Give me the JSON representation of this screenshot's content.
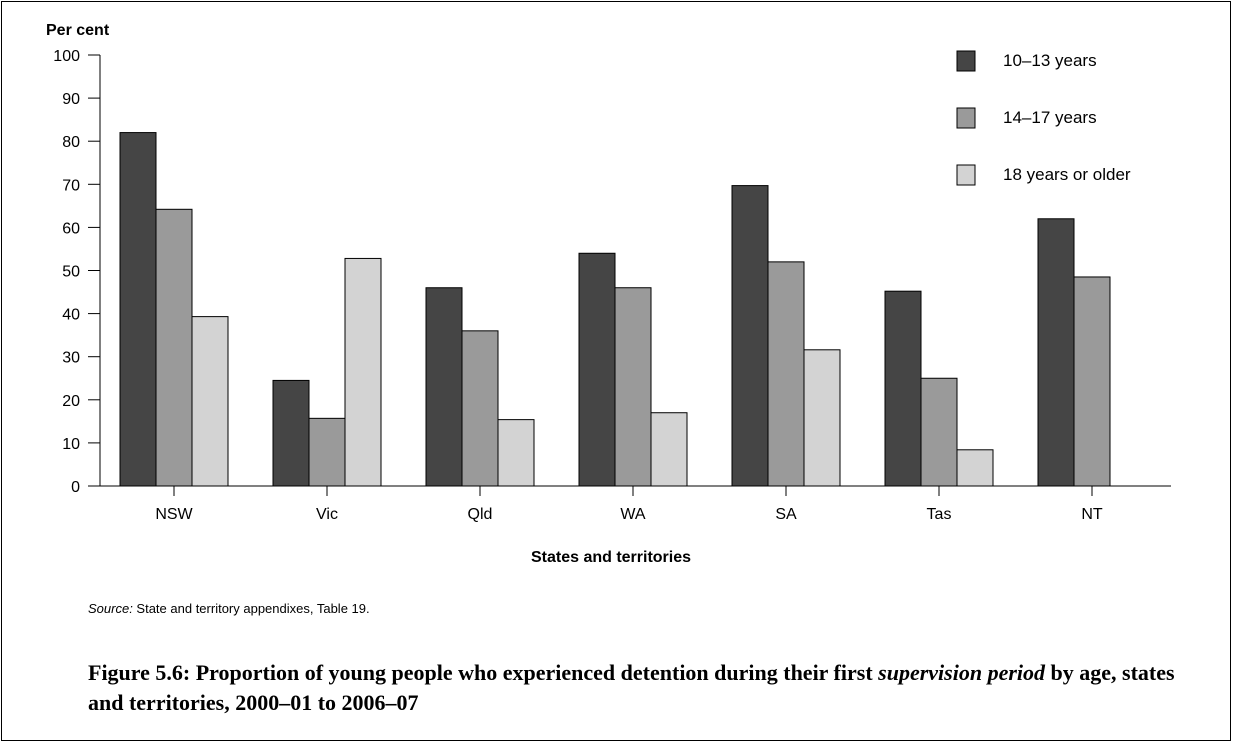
{
  "chart_data": {
    "type": "bar",
    "title": "",
    "ylabel": "Per cent",
    "xlabel": "States and territories",
    "ylim": [
      0,
      100
    ],
    "yticks": [
      0,
      10,
      20,
      30,
      40,
      50,
      60,
      70,
      80,
      90,
      100
    ],
    "grid": false,
    "legend_position": "top-right",
    "categories": [
      "NSW",
      "Vic",
      "Qld",
      "WA",
      "SA",
      "Tas",
      "NT"
    ],
    "series": [
      {
        "name": "10–13 years",
        "color": "#454545",
        "values": [
          82,
          24.5,
          46,
          54,
          69.7,
          45.2,
          62
        ]
      },
      {
        "name": "14–17 years",
        "color": "#9a9a9a",
        "values": [
          64.2,
          15.7,
          36,
          46,
          52,
          25,
          48.5
        ]
      },
      {
        "name": "18 years or older",
        "color": "#d3d3d3",
        "values": [
          39.3,
          52.8,
          15.4,
          17,
          31.6,
          8.4,
          null
        ]
      }
    ]
  },
  "source": {
    "label": "Source:",
    "text": " State and territory appendixes, Table 19."
  },
  "caption": {
    "part1": "Figure 5.6: Proportion of young people who experienced detention during their first ",
    "italic": "supervision period",
    "part2": " by age, states and territories, 2000–01 to 2006–07"
  }
}
